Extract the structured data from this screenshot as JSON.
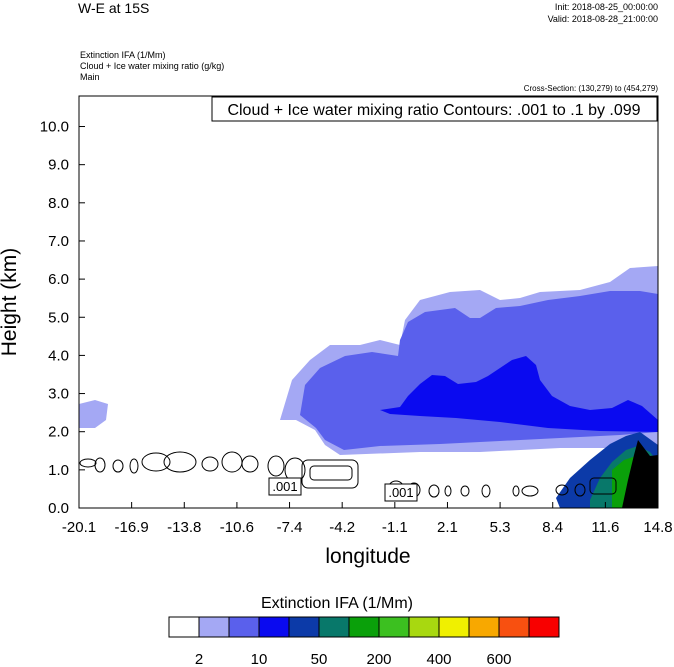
{
  "header": {
    "title": "W-E at 15S",
    "init": "Init: 2018-08-25_00:00:00",
    "valid": "Valid: 2018-08-28_21:00:00",
    "meta_lines": [
      "Extinction IFA   (1/Mm)",
      "Cloud + Ice water mixing ratio   (g/kg)",
      "Main"
    ],
    "cross_section": "Cross-Section: (130,279) to (454,279)"
  },
  "chart_data": {
    "type": "contour",
    "title": "Cloud + Ice water mixing ratio Contours: .001 to .1 by .099",
    "xlabel": "longitude",
    "ylabel": "Height (km)",
    "xlim": [
      -20.1,
      14.8
    ],
    "ylim": [
      0,
      10.8
    ],
    "x_ticks": [
      "-20.1",
      "-16.9",
      "-13.8",
      "-10.6",
      "-7.4",
      "-4.2",
      "-1.1",
      "2.1",
      "5.3",
      "8.4",
      "11.6",
      "14.8"
    ],
    "y_ticks": [
      "0.0",
      "1.0",
      "2.0",
      "3.0",
      "4.0",
      "5.0",
      "6.0",
      "7.0",
      "8.0",
      "9.0",
      "10.0"
    ],
    "contour_labels": [
      ".001",
      ".001"
    ],
    "colorbar": {
      "title": "Extinction IFA  (1/Mm)",
      "colors": [
        "#ffffff",
        "#a4a8f4",
        "#5a60ec",
        "#0a0af0",
        "#0c3aa8",
        "#08786a",
        "#0aa00a",
        "#3cc020",
        "#a8d810",
        "#f0f000",
        "#f8a800",
        "#f85010",
        "#f80000"
      ],
      "labels": [
        "2",
        "10",
        "50",
        "200",
        "400",
        "600"
      ]
    }
  }
}
